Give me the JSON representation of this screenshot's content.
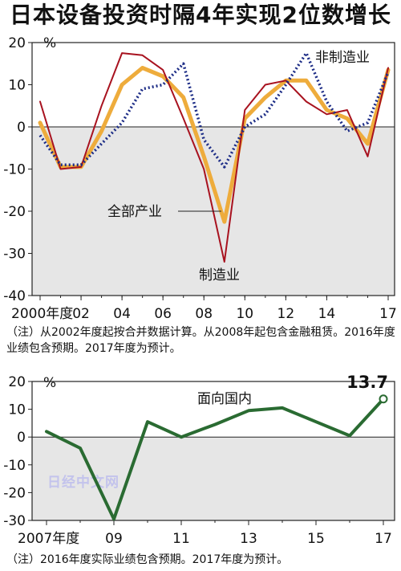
{
  "title": "日本设备投资时隔4年实现2位数增长",
  "watermark": "日经中文网",
  "charts": [
    {
      "type": "line",
      "unit": "%",
      "ylim": [
        -40,
        20
      ],
      "yticks": [
        20,
        10,
        0,
        -10,
        -20,
        -30,
        -40
      ],
      "xlim": [
        2000,
        2017
      ],
      "xticks": [
        {
          "x": 2000,
          "label": "2000年度"
        },
        {
          "x": 2002,
          "label": "02"
        },
        {
          "x": 2004,
          "label": "04"
        },
        {
          "x": 2006,
          "label": "06"
        },
        {
          "x": 2008,
          "label": "08"
        },
        {
          "x": 2010,
          "label": "10"
        },
        {
          "x": 2012,
          "label": "12"
        },
        {
          "x": 2014,
          "label": "14"
        },
        {
          "x": 2017,
          "label": "17"
        }
      ],
      "series": [
        {
          "name": "全部产业",
          "color": "#eeac3c",
          "style": "solid",
          "x": [
            2000,
            2001,
            2002,
            2003,
            2004,
            2005,
            2006,
            2007,
            2008,
            2009,
            2010,
            2011,
            2012,
            2013,
            2014,
            2015,
            2016,
            2017
          ],
          "y": [
            1,
            -9.5,
            -9.5,
            -1,
            10,
            14,
            12,
            7,
            -7,
            -22.5,
            2,
            7,
            11,
            11,
            4,
            2,
            -4,
            13.5
          ]
        },
        {
          "name": "制造业",
          "color": "#a8121f",
          "style": "solid",
          "x": [
            2000,
            2001,
            2002,
            2003,
            2004,
            2005,
            2006,
            2007,
            2008,
            2009,
            2010,
            2011,
            2012,
            2013,
            2014,
            2015,
            2016,
            2017
          ],
          "y": [
            6,
            -10,
            -9.5,
            5,
            17.5,
            17,
            13.5,
            2,
            -10,
            -32,
            4,
            10,
            11,
            6,
            3,
            4,
            -7,
            14
          ]
        },
        {
          "name": "非制造业",
          "color": "#1c2c86",
          "style": "dotted",
          "x": [
            2000,
            2001,
            2002,
            2003,
            2004,
            2005,
            2006,
            2007,
            2008,
            2009,
            2010,
            2011,
            2012,
            2013,
            2014,
            2015,
            2016,
            2017
          ],
          "y": [
            -2,
            -9,
            -9,
            -4,
            1,
            9,
            10,
            15,
            -3,
            -9.5,
            0,
            3,
            10,
            17.5,
            6,
            -1,
            1,
            13
          ]
        }
      ],
      "labels": [
        {
          "text": "非制造业",
          "series": "非制造业"
        },
        {
          "text": "全部产业",
          "series": "全部产业"
        },
        {
          "text": "制造业",
          "series": "制造业"
        }
      ],
      "note": "（注）从2002年度起按合并数据计算。从2008年起包含金融租赁。2016年度业绩包含预期。2017年度为预计。"
    },
    {
      "type": "line",
      "unit": "%",
      "ylim": [
        -30,
        20
      ],
      "yticks": [
        20,
        10,
        0,
        -10,
        -20,
        -30
      ],
      "xlim": [
        2007,
        2017
      ],
      "xticks": [
        {
          "x": 2007,
          "label": "2007年度"
        },
        {
          "x": 2009,
          "label": "09"
        },
        {
          "x": 2011,
          "label": "11"
        },
        {
          "x": 2013,
          "label": "13"
        },
        {
          "x": 2015,
          "label": "15"
        },
        {
          "x": 2017,
          "label": "17"
        }
      ],
      "series": [
        {
          "name": "面向国内",
          "color": "#2a6b32",
          "style": "solid",
          "x": [
            2007,
            2008,
            2009,
            2010,
            2011,
            2012,
            2013,
            2014,
            2015,
            2016,
            2017
          ],
          "y": [
            2,
            -4,
            -29.5,
            5.5,
            0,
            4.5,
            9.5,
            10.5,
            5.5,
            0.5,
            13.7
          ]
        }
      ],
      "labels": [
        {
          "text": "面向国内",
          "series": "面向国内"
        }
      ],
      "annotation": {
        "x": 2017,
        "y": 13.7,
        "text": "13.7"
      },
      "note": "（注）2016年度实际业绩包含预期。2017年度为预计。"
    }
  ]
}
